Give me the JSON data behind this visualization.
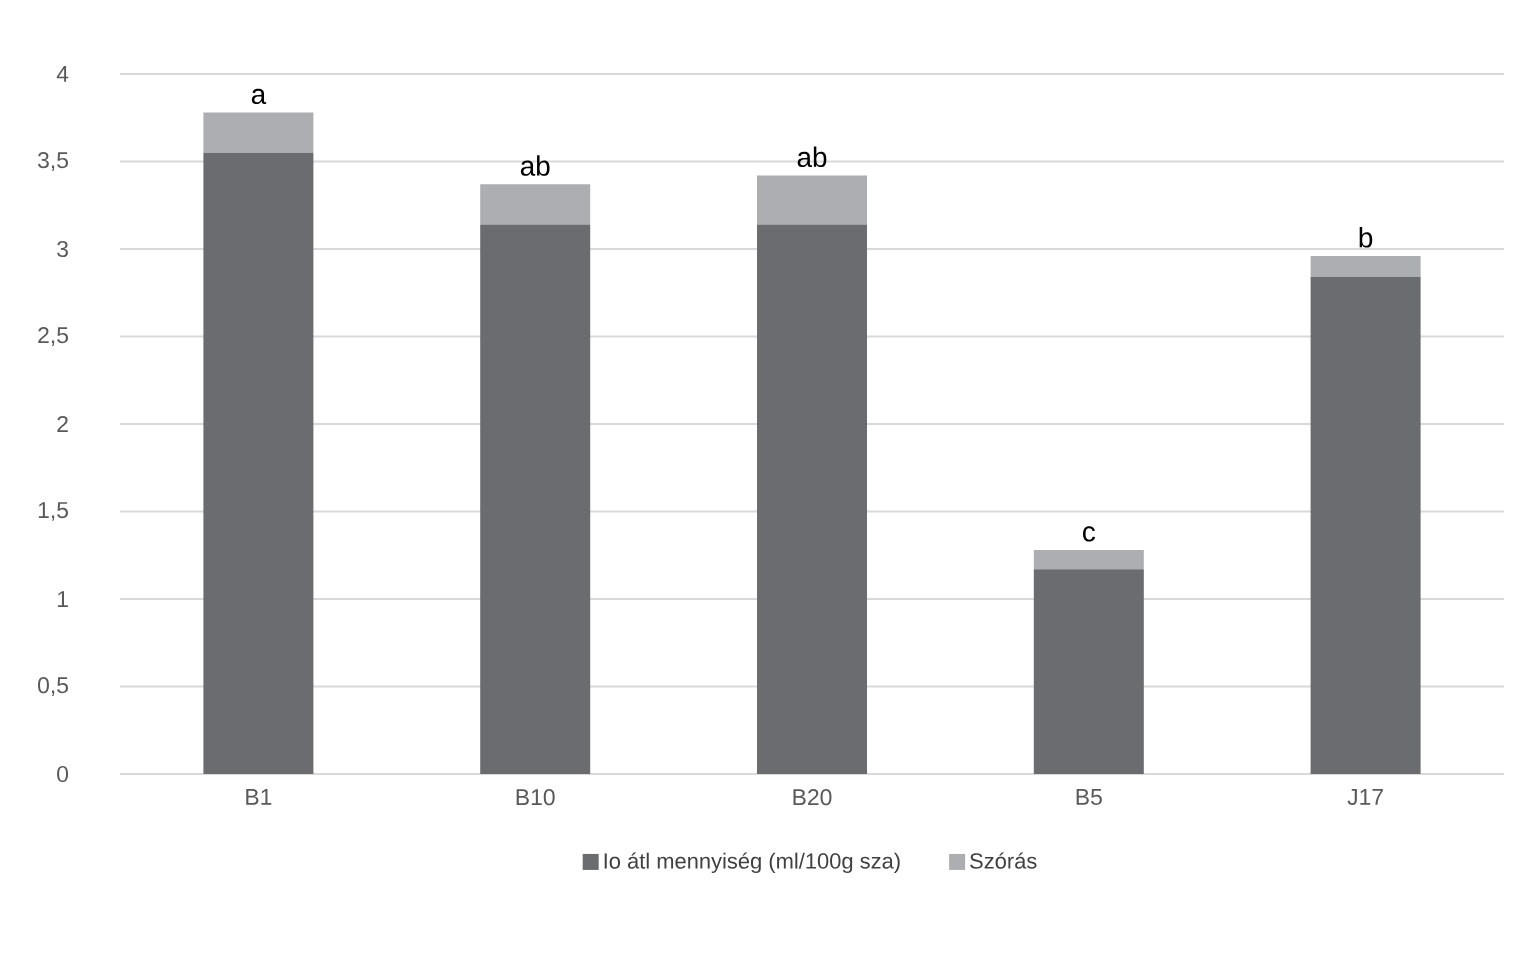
{
  "chart_data": {
    "type": "bar",
    "stacked": true,
    "categories": [
      "B1",
      "B10",
      "B20",
      "B5",
      "J17"
    ],
    "series": [
      {
        "name": "Io átl mennyiség (ml/100g sza)",
        "color": "#6b6c70",
        "values": [
          3.55,
          3.14,
          3.14,
          1.17,
          2.84
        ]
      },
      {
        "name": "Szórás",
        "color": "#adaeb1",
        "values": [
          0.23,
          0.23,
          0.28,
          0.11,
          0.12
        ]
      }
    ],
    "ylim": [
      0,
      4
    ],
    "yticks": [
      0,
      {
        "value": 0.5,
        "label": "0,5"
      },
      1,
      {
        "value": 1.5,
        "label": "1,5"
      },
      2,
      {
        "value": 2.5,
        "label": "2,5"
      },
      3,
      {
        "value": 3.5,
        "label": "3,5"
      },
      4
    ],
    "grid": "y",
    "legend": "bottom",
    "annotations": [
      {
        "text": "a",
        "x": "B1",
        "y": 3.78
      },
      {
        "text": "ab",
        "x": "B10",
        "y": 3.37
      },
      {
        "text": "ab",
        "x": "B20",
        "y": 3.42
      },
      {
        "text": "c",
        "x": "B5",
        "y": 1.28
      },
      {
        "text": "b",
        "x": "J17",
        "y": 2.96
      }
    ]
  }
}
